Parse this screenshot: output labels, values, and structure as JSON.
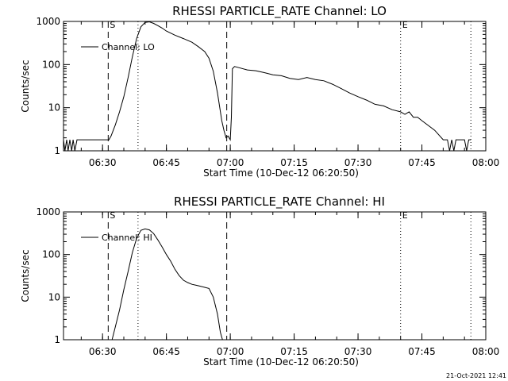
{
  "footer": {
    "timestamp": "21-Oct-2021 12:41"
  },
  "colors": {
    "foreground": "#000000",
    "background": "#ffffff"
  },
  "chart_data": [
    {
      "type": "line",
      "title": "RHESSI PARTICLE_RATE Channel: LO",
      "xlabel": "Start Time (10-Dec-12 06:20:50)",
      "ylabel": "Counts/sec",
      "yscale": "log",
      "xlim": [
        "06:20:50",
        "08:00:00"
      ],
      "ylim": [
        1,
        1000
      ],
      "xticks": [
        "06:30",
        "06:45",
        "07:00",
        "07:15",
        "07:30",
        "07:45",
        "08:00"
      ],
      "yticks": [
        "1",
        "10",
        "100",
        "1000"
      ],
      "legend": {
        "position": "top-left",
        "entries": [
          "Channel: LO"
        ]
      },
      "markers": [
        {
          "label": "S",
          "time": "06:31:20",
          "style": "dashed"
        },
        {
          "label": "",
          "time": "06:38:20",
          "style": "dotted"
        },
        {
          "label": "",
          "time": "06:59:10",
          "style": "dashed"
        },
        {
          "label": "E",
          "time": "07:40:00",
          "style": "dotted"
        },
        {
          "label": "",
          "time": "07:56:30",
          "style": "dotted"
        }
      ],
      "series": [
        {
          "x": [
            "06:20:50",
            "06:21:10",
            "06:21:35",
            "06:21:55",
            "06:22:20",
            "06:22:45",
            "06:23:05",
            "06:23:30",
            "06:24:00",
            "06:25:00",
            "06:27:00",
            "06:29:00",
            "06:30:00",
            "06:31:30",
            "06:32:00",
            "06:33:00",
            "06:34:00",
            "06:35:00",
            "06:36:00",
            "06:37:00",
            "06:38:00",
            "06:39:00",
            "06:40:00",
            "06:41:00",
            "06:42:00",
            "06:43:00",
            "06:44:00",
            "06:45:00",
            "06:47:00",
            "06:49:00",
            "06:51:00",
            "06:52:30",
            "06:54:00",
            "06:55:00",
            "06:56:00",
            "06:57:00",
            "06:58:00",
            "06:58:30",
            "06:59:00",
            "06:59:30",
            "07:00:00",
            "07:00:15",
            "07:00:30",
            "07:01:00",
            "07:02:00",
            "07:04:00",
            "07:06:00",
            "07:08:00",
            "07:10:00",
            "07:12:00",
            "07:14:00",
            "07:16:00",
            "07:18:00",
            "07:20:00",
            "07:22:00",
            "07:24:00",
            "07:26:00",
            "07:28:00",
            "07:30:00",
            "07:32:00",
            "07:34:00",
            "07:36:00",
            "07:38:00",
            "07:40:00",
            "07:41:00",
            "07:42:00",
            "07:43:00",
            "07:44:00",
            "07:45:00",
            "07:48:00",
            "07:50:00",
            "07:51:00",
            "07:51:30",
            "07:52:00",
            "07:52:30",
            "07:53:00",
            "07:54:00",
            "07:55:00",
            "07:55:30",
            "07:56:00",
            "07:56:30"
          ],
          "y": [
            1.8,
            1,
            1.8,
            1,
            1.8,
            1,
            1.8,
            1,
            1.8,
            1.8,
            1.8,
            1.8,
            1.8,
            1.8,
            2.2,
            4,
            8,
            18,
            50,
            150,
            400,
            750,
            950,
            980,
            900,
            800,
            700,
            600,
            480,
            400,
            330,
            260,
            200,
            140,
            70,
            22,
            5,
            3,
            2,
            2.2,
            1.8,
            6,
            80,
            90,
            85,
            75,
            72,
            65,
            58,
            55,
            48,
            45,
            50,
            45,
            42,
            35,
            28,
            22,
            18,
            15,
            12,
            11,
            9,
            8,
            7,
            8,
            6,
            6,
            5,
            3,
            1.8,
            1.8,
            1,
            1.8,
            1,
            1.8,
            1.8,
            1.8,
            1,
            1.8,
            1.8
          ]
        }
      ]
    },
    {
      "type": "line",
      "title": "RHESSI PARTICLE_RATE Channel: HI",
      "xlabel": "Start Time (10-Dec-12 06:20:50)",
      "ylabel": "Counts/sec",
      "yscale": "log",
      "xlim": [
        "06:20:50",
        "08:00:00"
      ],
      "ylim": [
        1,
        1000
      ],
      "xticks": [
        "06:30",
        "06:45",
        "07:00",
        "07:15",
        "07:30",
        "07:45",
        "08:00"
      ],
      "yticks": [
        "1",
        "10",
        "100",
        "1000"
      ],
      "legend": {
        "position": "top-left",
        "entries": [
          "Channel: HI"
        ]
      },
      "markers": [
        {
          "label": "S",
          "time": "06:31:20",
          "style": "dashed"
        },
        {
          "label": "",
          "time": "06:38:20",
          "style": "dotted"
        },
        {
          "label": "",
          "time": "06:59:10",
          "style": "dashed"
        },
        {
          "label": "E",
          "time": "07:40:00",
          "style": "dotted"
        },
        {
          "label": "",
          "time": "07:56:30",
          "style": "dotted"
        }
      ],
      "series": [
        {
          "x": [
            "06:32:15",
            "06:33:00",
            "06:34:00",
            "06:35:00",
            "06:36:00",
            "06:37:00",
            "06:38:00",
            "06:39:00",
            "06:40:00",
            "06:41:00",
            "06:42:00",
            "06:43:00",
            "06:44:00",
            "06:45:00",
            "06:46:00",
            "06:47:00",
            "06:48:00",
            "06:49:00",
            "06:50:00",
            "06:51:00",
            "06:52:00",
            "06:53:00",
            "06:54:00",
            "06:55:00",
            "06:56:00",
            "06:57:00",
            "06:57:40",
            "06:58:10"
          ],
          "y": [
            1,
            2,
            5,
            15,
            40,
            110,
            240,
            370,
            400,
            380,
            310,
            220,
            150,
            100,
            70,
            45,
            32,
            25,
            22,
            20,
            19,
            18,
            17,
            16,
            10,
            4,
            1.5,
            1
          ]
        }
      ]
    }
  ]
}
